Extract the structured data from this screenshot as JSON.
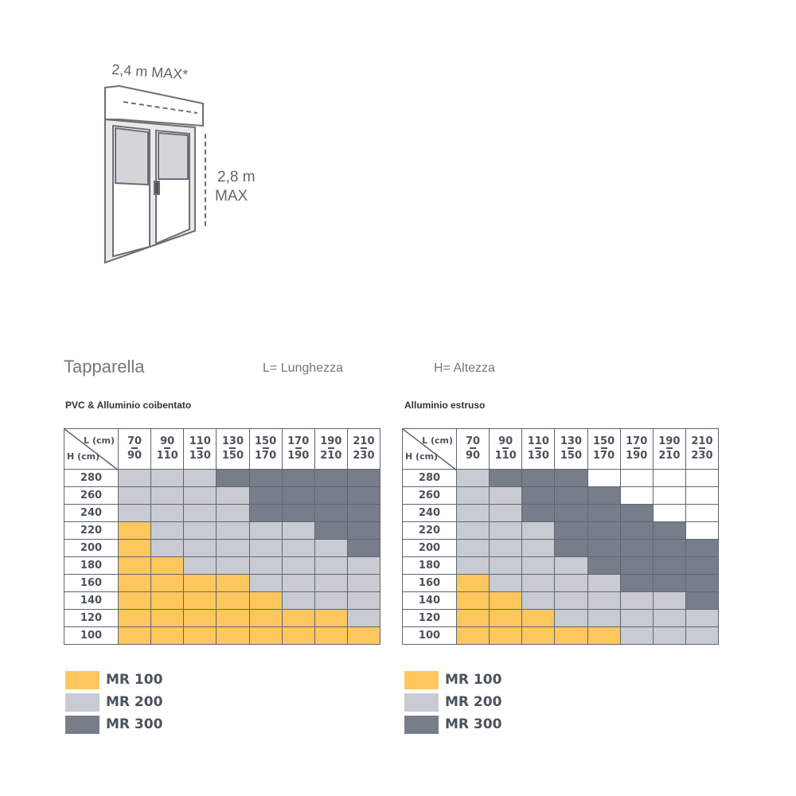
{
  "illustration": {
    "width_label": "2,4 m MAX*",
    "height_label_1": "2,8 m",
    "height_label_2": "MAX"
  },
  "header": {
    "title": "Tapparella",
    "l_def": "L= Lunghezza",
    "h_def": "H= Altezza"
  },
  "colors": {
    "MR 100": "#fdc75e",
    "MR 200": "#c8cbd1",
    "MR 300": "#777e8a",
    "none": "#ffffff",
    "border": "#5f6670"
  },
  "chart_data": [
    {
      "type": "table",
      "title": "PVC & Alluminio coibentato",
      "corner_l": "L (cm)",
      "corner_h": "H (cm)",
      "columns": [
        [
          "70",
          "90"
        ],
        [
          "90",
          "110"
        ],
        [
          "110",
          "130"
        ],
        [
          "130",
          "150"
        ],
        [
          "150",
          "170"
        ],
        [
          "170",
          "190"
        ],
        [
          "190",
          "210"
        ],
        [
          "210",
          "230"
        ]
      ],
      "rows": [
        "280",
        "260",
        "240",
        "220",
        "200",
        "180",
        "160",
        "140",
        "120",
        "100"
      ],
      "cells": [
        [
          "MR 200",
          "MR 200",
          "MR 200",
          "MR 300",
          "MR 300",
          "MR 300",
          "MR 300",
          "MR 300"
        ],
        [
          "MR 200",
          "MR 200",
          "MR 200",
          "MR 200",
          "MR 300",
          "MR 300",
          "MR 300",
          "MR 300"
        ],
        [
          "MR 200",
          "MR 200",
          "MR 200",
          "MR 200",
          "MR 300",
          "MR 300",
          "MR 300",
          "MR 300"
        ],
        [
          "MR 100",
          "MR 200",
          "MR 200",
          "MR 200",
          "MR 200",
          "MR 200",
          "MR 300",
          "MR 300"
        ],
        [
          "MR 100",
          "MR 200",
          "MR 200",
          "MR 200",
          "MR 200",
          "MR 200",
          "MR 200",
          "MR 300"
        ],
        [
          "MR 100",
          "MR 100",
          "MR 200",
          "MR 200",
          "MR 200",
          "MR 200",
          "MR 200",
          "MR 200"
        ],
        [
          "MR 100",
          "MR 100",
          "MR 100",
          "MR 100",
          "MR 200",
          "MR 200",
          "MR 200",
          "MR 200"
        ],
        [
          "MR 100",
          "MR 100",
          "MR 100",
          "MR 100",
          "MR 100",
          "MR 200",
          "MR 200",
          "MR 200"
        ],
        [
          "MR 100",
          "MR 100",
          "MR 100",
          "MR 100",
          "MR 100",
          "MR 100",
          "MR 100",
          "MR 200"
        ],
        [
          "MR 100",
          "MR 100",
          "MR 100",
          "MR 100",
          "MR 100",
          "MR 100",
          "MR 100",
          "MR 100"
        ]
      ],
      "legend": [
        "MR 100",
        "MR 200",
        "MR 300"
      ]
    },
    {
      "type": "table",
      "title": "Alluminio estruso",
      "corner_l": "L (cm)",
      "corner_h": "H (cm)",
      "columns": [
        [
          "70",
          "90"
        ],
        [
          "90",
          "110"
        ],
        [
          "110",
          "130"
        ],
        [
          "130",
          "150"
        ],
        [
          "150",
          "170"
        ],
        [
          "170",
          "190"
        ],
        [
          "190",
          "210"
        ],
        [
          "210",
          "230"
        ]
      ],
      "rows": [
        "280",
        "260",
        "240",
        "220",
        "200",
        "180",
        "160",
        "140",
        "120",
        "100"
      ],
      "cells": [
        [
          "MR 200",
          "MR 300",
          "MR 300",
          "MR 300",
          "none",
          "none",
          "none",
          "none"
        ],
        [
          "MR 200",
          "MR 200",
          "MR 300",
          "MR 300",
          "MR 300",
          "none",
          "none",
          "none"
        ],
        [
          "MR 200",
          "MR 200",
          "MR 300",
          "MR 300",
          "MR 300",
          "MR 300",
          "none",
          "none"
        ],
        [
          "MR 200",
          "MR 200",
          "MR 200",
          "MR 300",
          "MR 300",
          "MR 300",
          "MR 300",
          "none"
        ],
        [
          "MR 200",
          "MR 200",
          "MR 200",
          "MR 300",
          "MR 300",
          "MR 300",
          "MR 300",
          "MR 300"
        ],
        [
          "MR 200",
          "MR 200",
          "MR 200",
          "MR 200",
          "MR 300",
          "MR 300",
          "MR 300",
          "MR 300"
        ],
        [
          "MR 100",
          "MR 200",
          "MR 200",
          "MR 200",
          "MR 200",
          "MR 300",
          "MR 300",
          "MR 300"
        ],
        [
          "MR 100",
          "MR 100",
          "MR 200",
          "MR 200",
          "MR 200",
          "MR 200",
          "MR 200",
          "MR 300"
        ],
        [
          "MR 100",
          "MR 100",
          "MR 100",
          "MR 200",
          "MR 200",
          "MR 200",
          "MR 200",
          "MR 200"
        ],
        [
          "MR 100",
          "MR 100",
          "MR 100",
          "MR 100",
          "MR 100",
          "MR 200",
          "MR 200",
          "MR 200"
        ]
      ],
      "legend": [
        "MR 100",
        "MR 200",
        "MR 300"
      ]
    }
  ]
}
